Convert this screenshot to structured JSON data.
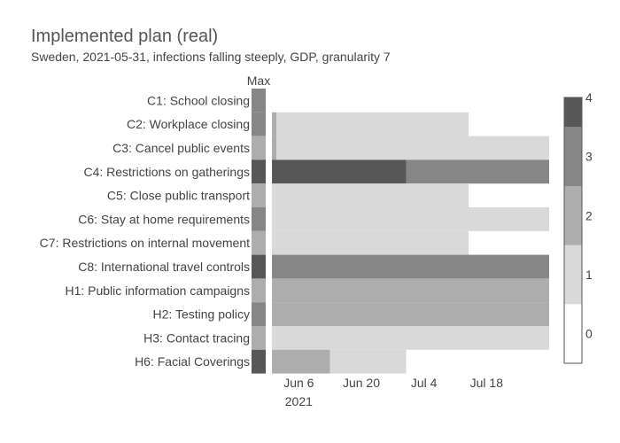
{
  "chart_data": {
    "type": "heatmap",
    "title": "Implemented plan (real)",
    "subtitle": "Sweden, 2021-05-31, infections falling steeply, GDP, granularity 7",
    "max_label": "Max",
    "rows": [
      {
        "label": "C1: School closing",
        "max": 3,
        "segments": []
      },
      {
        "label": "C2: Workplace closing",
        "max": 3,
        "segments": [
          {
            "start": "2021-05-31",
            "end": "2021-06-01",
            "value": 2
          },
          {
            "start": "2021-06-01",
            "end": "2021-07-14",
            "value": 1
          }
        ]
      },
      {
        "label": "C3: Cancel public events",
        "max": 2,
        "segments": [
          {
            "start": "2021-05-31",
            "end": "2021-06-01",
            "value": 2
          },
          {
            "start": "2021-06-01",
            "end": "2021-08-01",
            "value": 1
          }
        ]
      },
      {
        "label": "C4: Restrictions on gatherings",
        "max": 4,
        "segments": [
          {
            "start": "2021-05-31",
            "end": "2021-06-30",
            "value": 4
          },
          {
            "start": "2021-06-30",
            "end": "2021-08-01",
            "value": 3
          }
        ]
      },
      {
        "label": "C5: Close public transport",
        "max": 2,
        "segments": [
          {
            "start": "2021-05-31",
            "end": "2021-07-14",
            "value": 1
          }
        ]
      },
      {
        "label": "C6: Stay at home requirements",
        "max": 3,
        "segments": [
          {
            "start": "2021-05-31",
            "end": "2021-08-01",
            "value": 1
          }
        ]
      },
      {
        "label": "C7: Restrictions on internal movement",
        "max": 2,
        "segments": [
          {
            "start": "2021-05-31",
            "end": "2021-07-14",
            "value": 1
          }
        ]
      },
      {
        "label": "C8: International travel controls",
        "max": 4,
        "segments": [
          {
            "start": "2021-05-31",
            "end": "2021-08-01",
            "value": 3
          }
        ]
      },
      {
        "label": "H1: Public information campaigns",
        "max": 2,
        "segments": [
          {
            "start": "2021-05-31",
            "end": "2021-08-01",
            "value": 2
          }
        ]
      },
      {
        "label": "H2: Testing policy",
        "max": 3,
        "segments": [
          {
            "start": "2021-05-31",
            "end": "2021-08-01",
            "value": 2
          }
        ]
      },
      {
        "label": "H3: Contact tracing",
        "max": 2,
        "segments": [
          {
            "start": "2021-05-31",
            "end": "2021-08-01",
            "value": 1
          }
        ]
      },
      {
        "label": "H6: Facial Coverings",
        "max": 4,
        "segments": [
          {
            "start": "2021-05-31",
            "end": "2021-06-13",
            "value": 2
          },
          {
            "start": "2021-06-13",
            "end": "2021-06-30",
            "value": 1
          }
        ]
      }
    ],
    "x_range": [
      "2021-05-30",
      "2021-08-01"
    ],
    "x_ticks": [
      {
        "date": "2021-06-06",
        "label": "Jun 6",
        "sublabel": "2021"
      },
      {
        "date": "2021-06-20",
        "label": "Jun 20",
        "sublabel": ""
      },
      {
        "date": "2021-07-04",
        "label": "Jul 4",
        "sublabel": ""
      },
      {
        "date": "2021-07-18",
        "label": "Jul 18",
        "sublabel": ""
      }
    ],
    "colorscale": {
      "min": 0,
      "max": 4.5,
      "bands": [
        {
          "from": 0,
          "to": 1,
          "color": "#ffffff"
        },
        {
          "from": 1,
          "to": 2,
          "color": "#d9d9d9"
        },
        {
          "from": 2,
          "to": 3,
          "color": "#adadad"
        },
        {
          "from": 3,
          "to": 4,
          "color": "#868686"
        },
        {
          "from": 4,
          "to": 4.5,
          "color": "#575757"
        }
      ],
      "ticks": [
        "0",
        "1",
        "2",
        "3",
        "4"
      ]
    },
    "value_colors": {
      "1": "#d9d9d9",
      "2": "#adadad",
      "3": "#868686",
      "4": "#575757"
    }
  }
}
